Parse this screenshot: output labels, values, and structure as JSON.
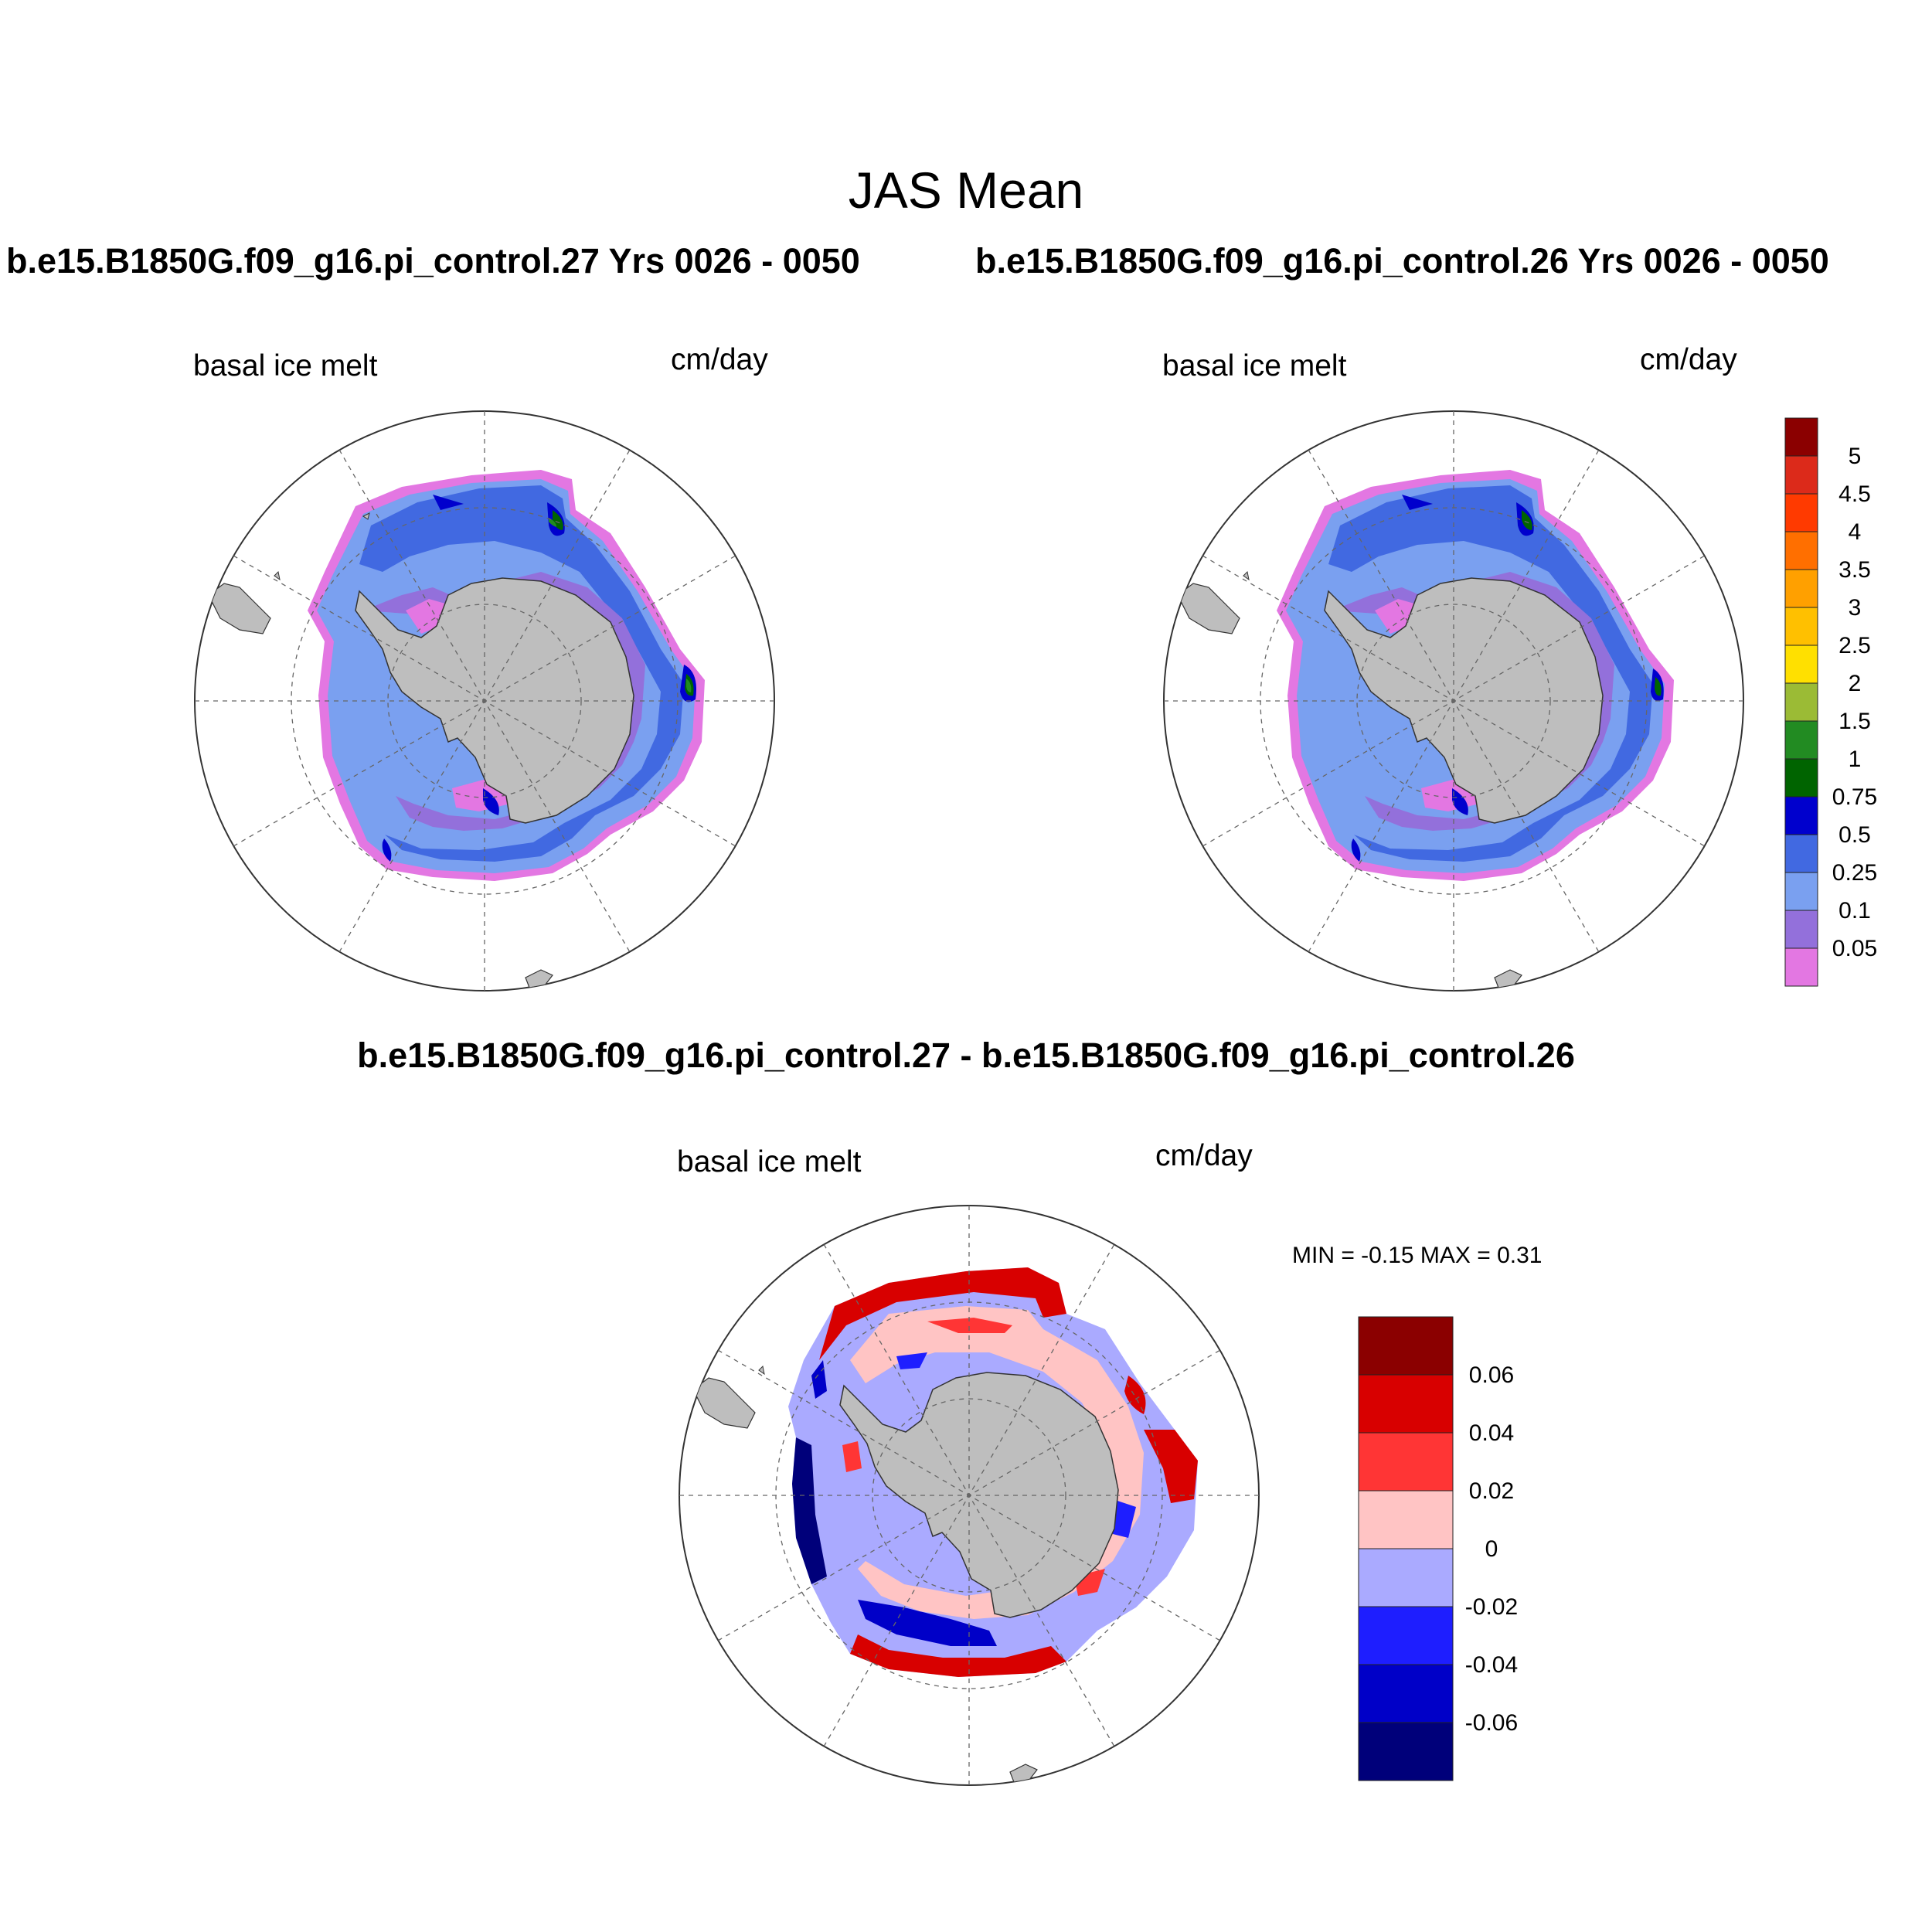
{
  "title": "JAS Mean",
  "panels": [
    {
      "id": "case27",
      "case_title": "b.e15.B1850G.f09_g16.pi_control.27  Yrs 0026 - 0050",
      "left_label": "basal ice melt",
      "right_label": "cm/day"
    },
    {
      "id": "case26",
      "case_title": "b.e15.B1850G.f09_g16.pi_control.26  Yrs 0026 - 0050",
      "left_label": "basal ice melt",
      "right_label": "cm/day"
    },
    {
      "id": "diff",
      "case_title": "b.e15.B1850G.f09_g16.pi_control.27 - b.e15.B1850G.f09_g16.pi_control.26",
      "left_label": "basal ice melt",
      "right_label": "cm/day",
      "minmax": "MIN =  -0.15 MAX =   0.31"
    }
  ],
  "colorbar_top": {
    "levels": [
      "0.05",
      "0.1",
      "0.25",
      "0.5",
      "0.75",
      "1",
      "1.5",
      "2",
      "2.5",
      "3",
      "3.5",
      "4",
      "4.5",
      "5"
    ],
    "colors": [
      "#e377e2",
      "#9370db",
      "#7aa0f0",
      "#4169e1",
      "#0000cd",
      "#006400",
      "#228b22",
      "#9bbb35",
      "#ffe000",
      "#ffc000",
      "#ffa000",
      "#ff6f00",
      "#ff3a00",
      "#dc2a1a",
      "#8b0000"
    ]
  },
  "colorbar_diff": {
    "levels": [
      "-0.06",
      "-0.04",
      "-0.02",
      "0",
      "0.02",
      "0.04",
      "0.06"
    ],
    "colors": [
      "#00007a",
      "#0000c8",
      "#1e1eff",
      "#aaaaff",
      "#ffc4c4",
      "#ff3535",
      "#d80000",
      "#8b0000"
    ]
  },
  "map_colors": {
    "land": "#bebebe",
    "ocean_bg": "#ffffff",
    "grid": "#666666"
  }
}
